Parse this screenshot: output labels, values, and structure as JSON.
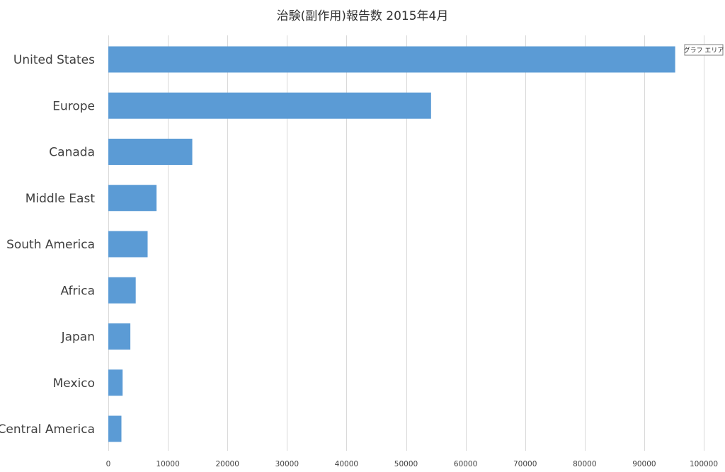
{
  "tooltip": {
    "text": "グラフ エリア"
  },
  "chart_data": {
    "type": "bar",
    "orientation": "horizontal",
    "title": "治験(副作用)報告数  2015年4月",
    "xlabel": "",
    "ylabel": "",
    "categories": [
      "United States",
      "Europe",
      "Canada",
      "Middle East",
      "South America",
      "Africa",
      "Japan",
      "Mexico",
      "Central America"
    ],
    "values": [
      95200,
      54200,
      14100,
      8100,
      6600,
      4600,
      3700,
      2400,
      2200
    ],
    "xlim": [
      0,
      100000
    ],
    "xticks": [
      0,
      10000,
      20000,
      30000,
      40000,
      50000,
      60000,
      70000,
      80000,
      90000,
      100000
    ],
    "grid": true,
    "legend": "none",
    "bar_color": "#5b9bd5"
  }
}
